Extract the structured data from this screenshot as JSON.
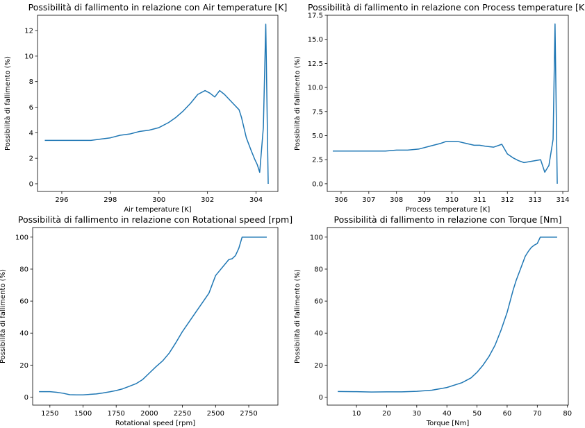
{
  "chart_data": [
    {
      "type": "line",
      "title": "Possibilità di fallimento in relazione con Air temperature [K]",
      "xlabel": "Air temperature [K]",
      "ylabel": "Possibilità di fallimento (%)",
      "xlim": [
        295.0,
        304.9
      ],
      "ylim": [
        -0.6,
        13.2
      ],
      "xticks": [
        296,
        298,
        300,
        302,
        304
      ],
      "yticks": [
        0,
        2,
        4,
        6,
        8,
        10,
        12
      ],
      "xtick_labels": [
        "296",
        "298",
        "300",
        "302",
        "304"
      ],
      "ytick_labels": [
        "0",
        "2",
        "4",
        "6",
        "8",
        "10",
        "12"
      ],
      "grid": false,
      "series": [
        {
          "color": "#1f77b4",
          "x": [
            295.3,
            295.8,
            296.3,
            296.8,
            297.2,
            297.6,
            298.0,
            298.4,
            298.8,
            299.2,
            299.6,
            300.0,
            300.4,
            300.7,
            301.0,
            301.3,
            301.6,
            301.9,
            302.1,
            302.3,
            302.5,
            302.7,
            302.9,
            303.1,
            303.3,
            303.4,
            303.6,
            303.8,
            303.95,
            304.05,
            304.15,
            304.3,
            304.4,
            304.5
          ],
          "y": [
            3.4,
            3.4,
            3.4,
            3.4,
            3.4,
            3.5,
            3.6,
            3.8,
            3.9,
            4.1,
            4.2,
            4.4,
            4.8,
            5.2,
            5.7,
            6.3,
            7.0,
            7.3,
            7.1,
            6.8,
            7.3,
            7.0,
            6.6,
            6.2,
            5.8,
            5.2,
            3.6,
            2.6,
            1.9,
            1.5,
            0.9,
            4.4,
            12.5,
            0.0
          ]
        }
      ]
    },
    {
      "type": "line",
      "title": "Possibilità di fallimento in relazione con Process temperature [K]",
      "xlabel": "Process temperature [K]",
      "ylabel": "Possibilità di fallimento (%)",
      "xlim": [
        305.5,
        314.2
      ],
      "ylim": [
        -0.8,
        17.5
      ],
      "xticks": [
        306,
        307,
        308,
        309,
        310,
        311,
        312,
        313,
        314
      ],
      "yticks": [
        0.0,
        2.5,
        5.0,
        7.5,
        10.0,
        12.5,
        15.0,
        17.5
      ],
      "xtick_labels": [
        "306",
        "307",
        "308",
        "309",
        "310",
        "311",
        "312",
        "313",
        "314"
      ],
      "ytick_labels": [
        "0.0",
        "2.5",
        "5.0",
        "7.5",
        "10.0",
        "12.5",
        "15.0",
        "17.5"
      ],
      "grid": false,
      "series": [
        {
          "color": "#1f77b4",
          "x": [
            305.7,
            306.2,
            306.7,
            307.2,
            307.6,
            308.0,
            308.4,
            308.8,
            309.2,
            309.6,
            309.8,
            310.0,
            310.2,
            310.5,
            310.8,
            311.0,
            311.2,
            311.5,
            311.8,
            312.0,
            312.2,
            312.4,
            312.6,
            312.8,
            313.0,
            313.2,
            313.35,
            313.5,
            313.65,
            313.72,
            313.8
          ],
          "y": [
            3.4,
            3.4,
            3.4,
            3.4,
            3.4,
            3.5,
            3.5,
            3.6,
            3.9,
            4.2,
            4.4,
            4.4,
            4.4,
            4.2,
            4.0,
            4.0,
            3.9,
            3.8,
            4.1,
            3.1,
            2.7,
            2.4,
            2.2,
            2.3,
            2.4,
            2.5,
            1.2,
            1.9,
            4.6,
            16.6,
            0.0
          ]
        }
      ]
    },
    {
      "type": "line",
      "title": "Possibilità di fallimento in relazione con Rotational speed [rpm]",
      "xlabel": "Rotational speed [rpm]",
      "ylabel": "Possibilità di fallimento (%)",
      "xlim": [
        1120,
        2970
      ],
      "ylim": [
        -5,
        106
      ],
      "xticks": [
        1250,
        1500,
        1750,
        2000,
        2250,
        2500,
        2750
      ],
      "yticks": [
        0,
        20,
        40,
        60,
        80,
        100
      ],
      "xtick_labels": [
        "1250",
        "1500",
        "1750",
        "2000",
        "2250",
        "2500",
        "2750"
      ],
      "ytick_labels": [
        "0",
        "20",
        "40",
        "60",
        "80",
        "100"
      ],
      "grid": false,
      "series": [
        {
          "color": "#1f77b4",
          "x": [
            1168,
            1250,
            1300,
            1350,
            1400,
            1450,
            1500,
            1550,
            1600,
            1650,
            1700,
            1750,
            1800,
            1850,
            1900,
            1950,
            2000,
            2050,
            2100,
            2150,
            2200,
            2250,
            2300,
            2350,
            2400,
            2450,
            2500,
            2525,
            2550,
            2575,
            2600,
            2625,
            2650,
            2675,
            2700,
            2750,
            2800,
            2886
          ],
          "y": [
            3.4,
            3.4,
            3.0,
            2.4,
            1.5,
            1.4,
            1.4,
            1.7,
            2.0,
            2.6,
            3.3,
            4.1,
            5.2,
            6.8,
            8.4,
            11.0,
            15.0,
            19.0,
            22.6,
            27.5,
            34.0,
            41.0,
            47.0,
            53.0,
            59.0,
            65.0,
            76.0,
            78.5,
            81.0,
            83.5,
            86.0,
            86.5,
            88.5,
            93.0,
            100.0,
            100.0,
            100.0,
            100.0
          ]
        }
      ]
    },
    {
      "type": "line",
      "title": "Possibilità di fallimento in relazione con Torque [Nm]",
      "xlabel": "Torque [Nm]",
      "ylabel": "Possibilità di fallimento (%)",
      "xlim": [
        0.3,
        80.3
      ],
      "ylim": [
        -5,
        106
      ],
      "xticks": [
        10,
        20,
        30,
        40,
        50,
        60,
        70,
        80
      ],
      "yticks": [
        0,
        20,
        40,
        60,
        80,
        100
      ],
      "xtick_labels": [
        "10",
        "20",
        "30",
        "40",
        "50",
        "60",
        "70",
        "80"
      ],
      "ytick_labels": [
        "0",
        "20",
        "40",
        "60",
        "80",
        "100"
      ],
      "grid": false,
      "series": [
        {
          "color": "#1f77b4",
          "x": [
            3.8,
            10,
            15,
            20,
            25,
            30,
            35,
            40,
            45,
            48,
            50,
            52,
            54,
            56,
            58,
            60,
            61,
            62,
            63,
            64,
            65,
            66,
            67,
            68,
            69,
            70,
            71,
            73,
            76.6
          ],
          "y": [
            3.5,
            3.4,
            3.2,
            3.3,
            3.3,
            3.6,
            4.3,
            6.0,
            9.0,
            12.0,
            15.5,
            20.0,
            25.5,
            32.5,
            42.0,
            53.0,
            60.0,
            67.0,
            73.0,
            78.0,
            83.0,
            88.0,
            91.0,
            93.5,
            95.0,
            96.0,
            100.0,
            100.0,
            100.0
          ]
        }
      ]
    }
  ]
}
